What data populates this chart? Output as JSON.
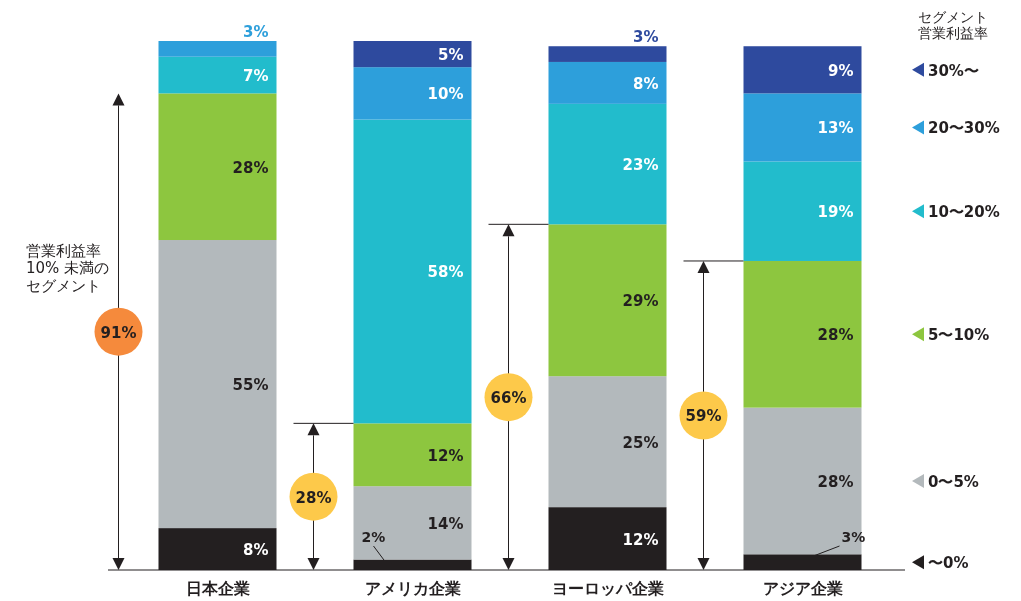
{
  "chart_data": {
    "type": "bar",
    "stacked": true,
    "legend": "right",
    "legend_title": "セグメント営業利益率",
    "categories": [
      "日本企業",
      "アメリカ企業",
      "ヨーロッパ企業",
      "アジア企業"
    ],
    "series": [
      {
        "name": "〜0%",
        "color": "#231f20",
        "values": [
          8,
          2,
          12,
          3
        ],
        "value_labels": [
          "8%",
          "2%",
          "12%",
          "3%"
        ]
      },
      {
        "name": "0〜5%",
        "color": "#b3b9bc",
        "values": [
          55,
          14,
          25,
          28
        ],
        "value_labels": [
          "55%",
          "14%",
          "25%",
          "28%"
        ]
      },
      {
        "name": "5〜10%",
        "color": "#8dc63f",
        "values": [
          28,
          12,
          29,
          28
        ],
        "value_labels": [
          "28%",
          "12%",
          "29%",
          "28%"
        ]
      },
      {
        "name": "10〜20%",
        "color": "#22bccc",
        "values": [
          7,
          58,
          23,
          19
        ],
        "value_labels": [
          "7%",
          "58%",
          "23%",
          "19%"
        ]
      },
      {
        "name": "20〜30%",
        "color": "#2d9fdb",
        "values": [
          3,
          10,
          8,
          13
        ],
        "value_labels": [
          "3%",
          "10%",
          "8%",
          "13%"
        ]
      },
      {
        "name": "30%〜",
        "color": "#2e4a9e",
        "values": [
          null,
          5,
          3,
          9
        ],
        "value_labels": [
          null,
          "5%",
          "3%",
          "9%"
        ]
      }
    ],
    "annotations": [
      "営業利益率10% 未満のセグメント",
      "91%",
      "28%",
      "66%",
      "59%"
    ]
  }
}
